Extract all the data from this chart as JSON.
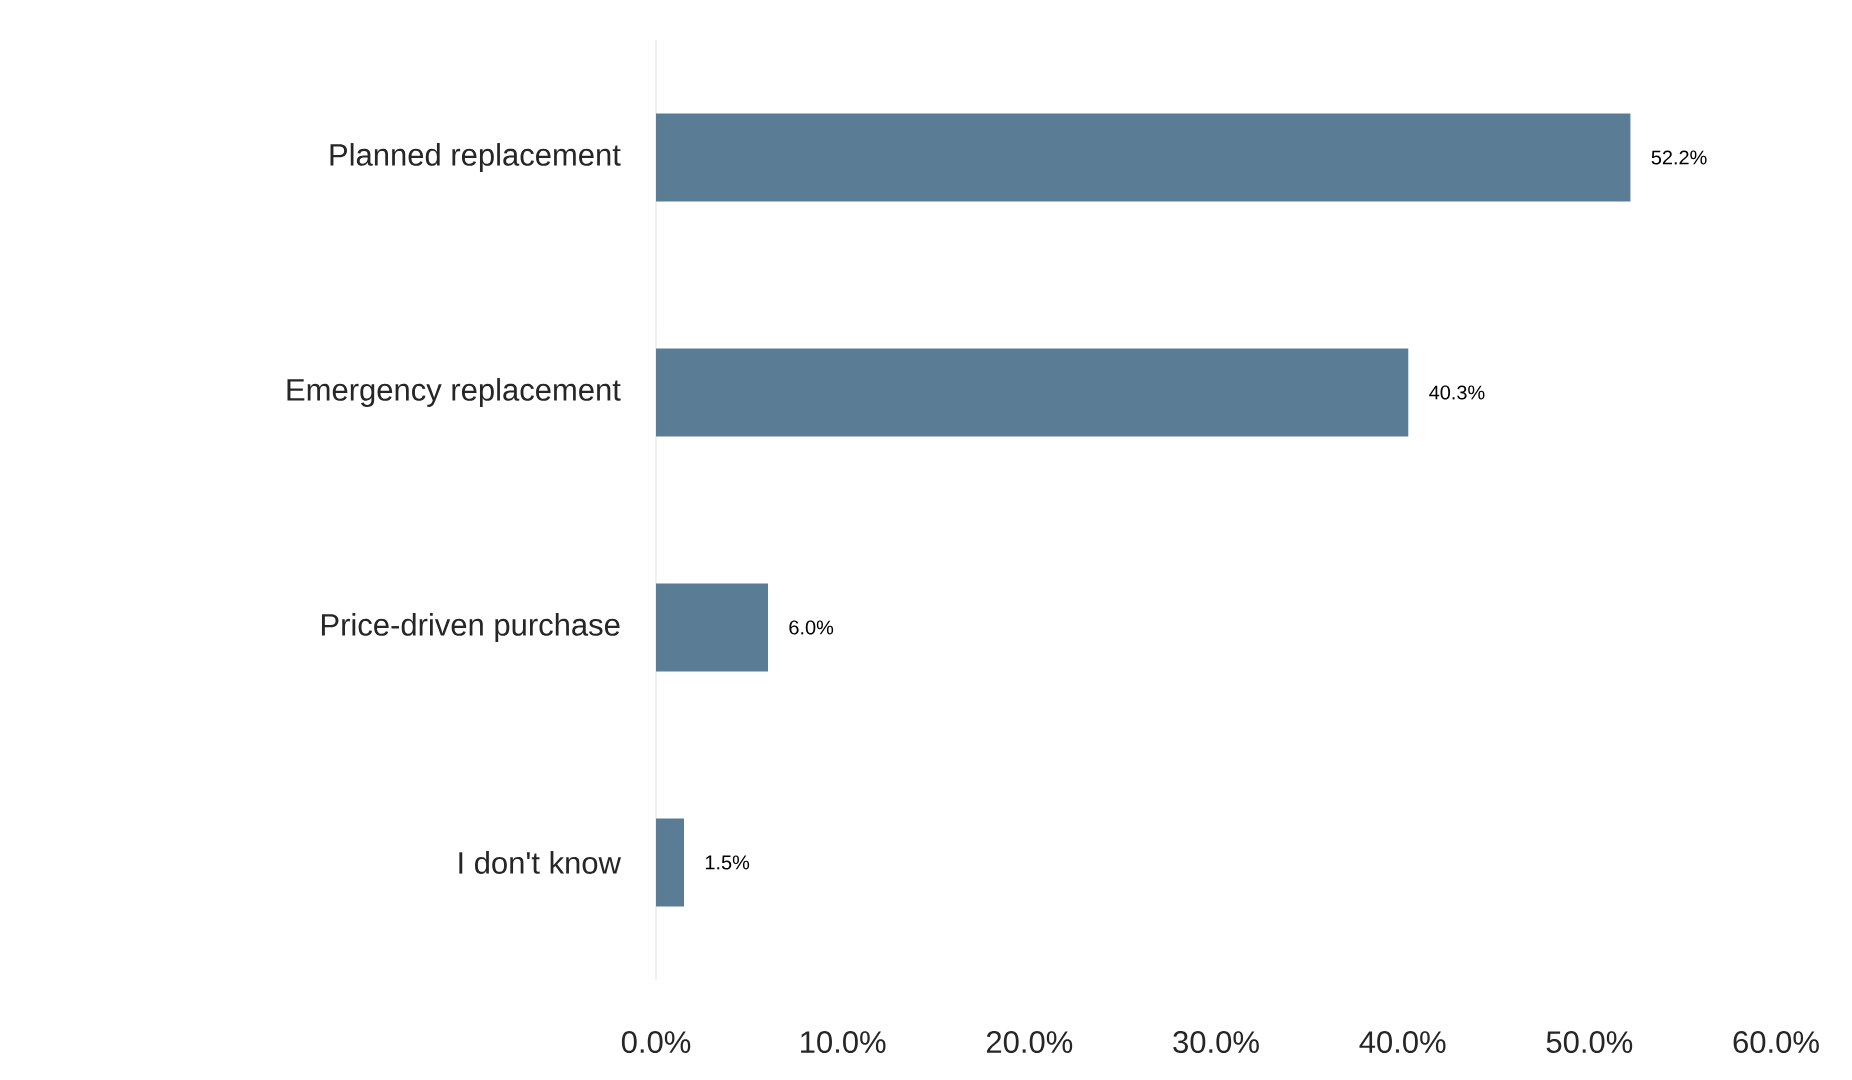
{
  "chart_data": {
    "type": "bar",
    "orientation": "horizontal",
    "categories": [
      "Planned replacement",
      "Emergency replacement",
      "Price-driven purchase",
      "I don't know"
    ],
    "values": [
      52.2,
      40.3,
      6.0,
      1.5
    ],
    "value_labels": [
      "52.2%",
      "40.3%",
      "6.0%",
      "1.5%"
    ],
    "color": "#5a7d95",
    "xlim": [
      0,
      60
    ],
    "xticks": [
      {
        "value": 0,
        "label": "0.0%"
      },
      {
        "value": 10,
        "label": "10.0%"
      },
      {
        "value": 20,
        "label": "20.0%"
      },
      {
        "value": 30,
        "label": "30.0%"
      },
      {
        "value": 40,
        "label": "40.0%"
      },
      {
        "value": 50,
        "label": "50.0%"
      },
      {
        "value": 60,
        "label": "60.0%"
      }
    ]
  }
}
